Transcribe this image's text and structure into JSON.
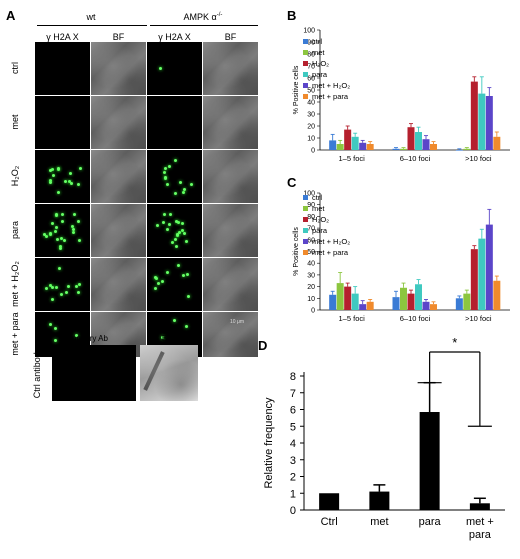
{
  "panel_labels": {
    "a": "A",
    "b": "B",
    "c": "C",
    "d": "D"
  },
  "panel_a": {
    "group_wt": "wt",
    "group_ko": "AMPK α",
    "group_ko_sup": "-/-",
    "col_headers": [
      "γ H2A X",
      "BF",
      "γ H2A X",
      "BF"
    ],
    "rows": [
      "ctrl",
      "met",
      "H₂O₂",
      "para",
      "met + H₂O₂",
      "met + para"
    ],
    "scale_bar": "10 μm",
    "ctrl_antibody": "Ctrl antibody",
    "secondary_ab": "Secondary Ab",
    "bf": "BF"
  },
  "chart_data": [
    {
      "panel": "B",
      "type": "bar",
      "ylabel": "% Positive cells",
      "ylim": [
        0,
        100
      ],
      "yticks": [
        0,
        10,
        20,
        30,
        40,
        50,
        60,
        70,
        80,
        90,
        100
      ],
      "categories": [
        "1–5 foci",
        "6–10 foci",
        ">10 foci"
      ],
      "series": [
        {
          "name": "ctrl",
          "color": "#3a7bd5",
          "values": [
            8,
            1,
            0
          ],
          "errors": [
            5,
            1,
            1
          ]
        },
        {
          "name": "met",
          "color": "#8cc63f",
          "values": [
            5,
            1,
            1
          ],
          "errors": [
            3,
            1,
            1
          ]
        },
        {
          "name": "H₂O₂",
          "color": "#b5202e",
          "values": [
            17,
            19,
            57
          ],
          "errors": [
            3,
            3,
            4
          ]
        },
        {
          "name": "para",
          "color": "#3fc9c0",
          "values": [
            11,
            15,
            47
          ],
          "errors": [
            3,
            4,
            14
          ]
        },
        {
          "name": "met + H₂O₂",
          "color": "#5b45c9",
          "values": [
            6,
            9,
            45
          ],
          "errors": [
            2,
            3,
            7
          ]
        },
        {
          "name": "met + para",
          "color": "#f08a2c",
          "values": [
            5,
            5,
            11
          ],
          "errors": [
            2,
            2,
            4
          ]
        }
      ]
    },
    {
      "panel": "C",
      "type": "bar",
      "ylabel": "% Positive cells",
      "ylim": [
        0,
        100
      ],
      "yticks": [
        0,
        10,
        20,
        30,
        40,
        50,
        60,
        70,
        80,
        90,
        100
      ],
      "categories": [
        "1–5 foci",
        "6–10 foci",
        ">10 foci"
      ],
      "series": [
        {
          "name": "ctrl",
          "color": "#3a7bd5",
          "values": [
            13,
            11,
            10
          ],
          "errors": [
            3,
            5,
            2
          ]
        },
        {
          "name": "met",
          "color": "#8cc63f",
          "values": [
            23,
            19,
            14
          ],
          "errors": [
            9,
            4,
            3
          ]
        },
        {
          "name": "H₂O₂",
          "color": "#b5202e",
          "values": [
            20,
            14,
            52
          ],
          "errors": [
            3,
            3,
            3
          ]
        },
        {
          "name": "para",
          "color": "#3fc9c0",
          "values": [
            14,
            22,
            61
          ],
          "errors": [
            6,
            4,
            8
          ]
        },
        {
          "name": "met + H₂O₂",
          "color": "#5b45c9",
          "values": [
            5,
            7,
            73
          ],
          "errors": [
            3,
            2,
            13
          ]
        },
        {
          "name": "met + para",
          "color": "#f08a2c",
          "values": [
            7,
            5,
            25
          ],
          "errors": [
            2,
            2,
            4
          ]
        }
      ]
    },
    {
      "panel": "D",
      "type": "bar",
      "ylabel": "Relative frequency",
      "ylim": [
        0,
        8
      ],
      "yticks": [
        0,
        1,
        2,
        3,
        4,
        5,
        6,
        7,
        8
      ],
      "categories": [
        "Ctrl",
        "met",
        "para",
        "met + para"
      ],
      "values": [
        1.0,
        1.1,
        5.85,
        0.4
      ],
      "errors": [
        0,
        0.4,
        1.75,
        0.3
      ],
      "significance": "*"
    }
  ]
}
